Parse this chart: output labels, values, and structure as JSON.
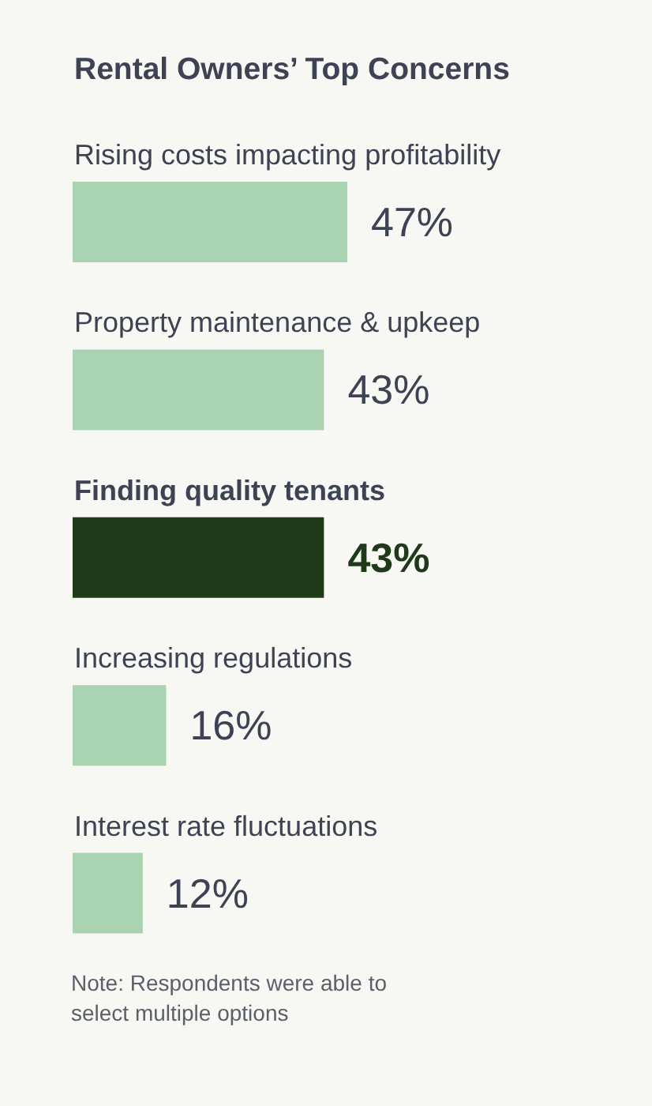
{
  "chart_data": {
    "type": "bar",
    "orientation": "horizontal",
    "title": "Rental Owners’ Top Concerns",
    "categories": [
      "Rising costs impacting profitability",
      "Property maintenance & upkeep",
      "Finding quality tenants",
      "Increasing regulations",
      "Interest rate fluctuations"
    ],
    "values": [
      47,
      43,
      43,
      16,
      12
    ],
    "value_labels": [
      "47%",
      "43%",
      "43%",
      "16%",
      "12%"
    ],
    "colors": [
      "#a9d2b0",
      "#a9d2b0",
      "#1f3a19",
      "#a9d2b0",
      "#a9d2b0"
    ],
    "annotations": [
      "Note: Respondents were able to select multiple options"
    ]
  }
}
